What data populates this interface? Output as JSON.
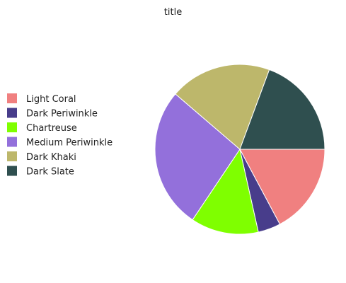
{
  "chart_data": {
    "type": "pie",
    "title": "title",
    "legend_placement": "left",
    "slices": [
      {
        "label": "Light Coral",
        "value": 16,
        "color": "#f08080"
      },
      {
        "label": "Dark Periwinkle",
        "value": 4,
        "color": "#483d8b"
      },
      {
        "label": "Chartreuse",
        "value": 12,
        "color": "#7fff00"
      },
      {
        "label": "Medium Periwinkle",
        "value": 25,
        "color": "#9370db"
      },
      {
        "label": "Dark Khaki",
        "value": 18,
        "color": "#bdb76b"
      },
      {
        "label": "Dark Slate",
        "value": 18,
        "color": "#2f4f4f"
      }
    ]
  }
}
